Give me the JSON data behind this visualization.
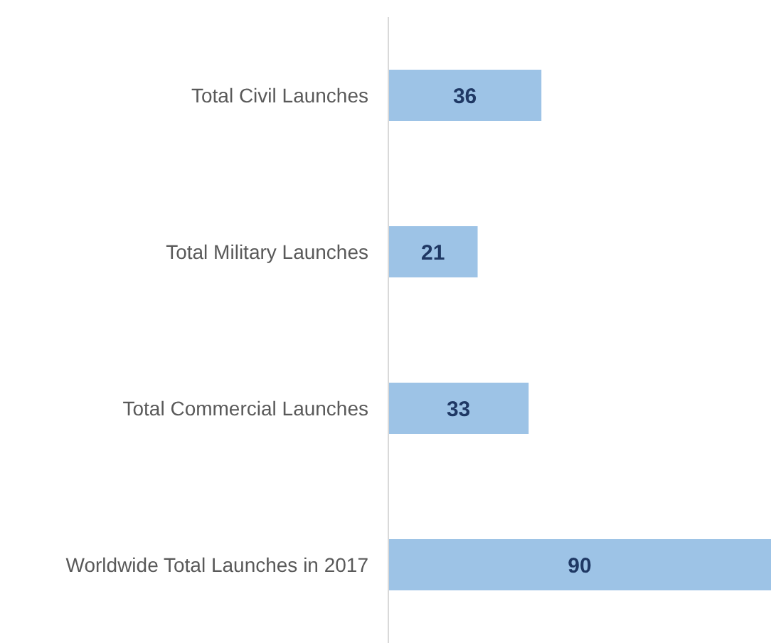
{
  "chart_data": {
    "type": "bar",
    "orientation": "horizontal",
    "categories": [
      "Total Civil Launches",
      "Total Military Launches",
      "Total Commercial Launches",
      "Worldwide Total Launches in 2017"
    ],
    "values": [
      36,
      21,
      33,
      90
    ],
    "color": "#9dc3e6",
    "data_labels": true,
    "grid": false,
    "legend": false
  }
}
